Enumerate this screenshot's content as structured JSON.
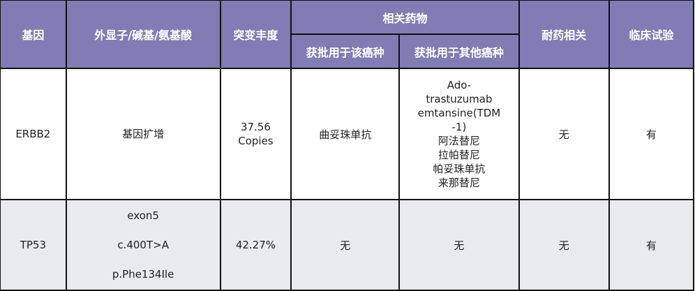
{
  "header": {
    "gene": "基因",
    "exon": "外显子/碱基/氨基酸",
    "abundance": "突变丰度",
    "drugs": "相关药物",
    "approved_this": "获批用于该癌种",
    "approved_other": "获批用于其他癌种",
    "resistance": "耐药相关",
    "trial": "临床试验"
  },
  "header_color": "#7f7db3",
  "rows": [
    {
      "gene": "ERBB2",
      "exon": [
        "基因扩增"
      ],
      "abundance": [
        "37.56",
        "Copies"
      ],
      "approved_this": "曲妥珠单抗",
      "approved_other": [
        "Ado-",
        "trastuzumab",
        "emtansine(TDM",
        "-1)",
        "阿法替尼",
        "拉帕替尼",
        "帕妥珠单抗",
        "来那替尼"
      ],
      "resistance": "无",
      "trial": "有"
    },
    {
      "gene": "TP53",
      "exon": [
        "exon5",
        "c.400T>A",
        "p.Phe134Ile"
      ],
      "abundance": [
        "42.27%"
      ],
      "approved_this": "无",
      "approved_other": [
        "无"
      ],
      "resistance": "无",
      "trial": "有"
    }
  ]
}
